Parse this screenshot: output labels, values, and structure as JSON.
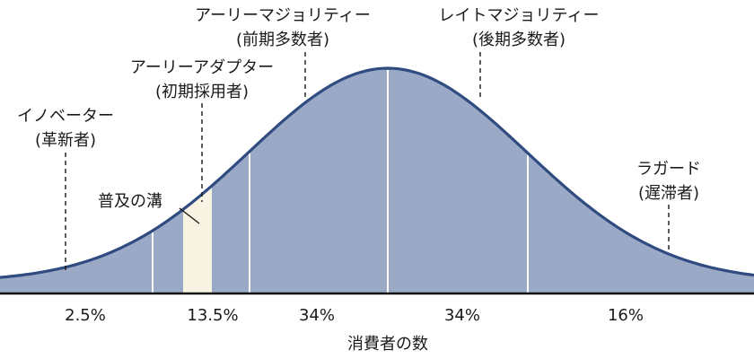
{
  "diagram": {
    "axis_label": "消費者の数",
    "segments": [
      {
        "label": "イノベーター",
        "sub": "(革新者)",
        "percent": "2.5%"
      },
      {
        "label": "アーリーアダプター",
        "sub": "(初期採用者)",
        "percent": "13.5%"
      },
      {
        "label": "アーリーマジョリティー",
        "sub": "(前期多数者)",
        "percent": "34%"
      },
      {
        "label": "レイトマジョリティー",
        "sub": "(後期多数者)",
        "percent": "34%"
      },
      {
        "label": "ラガード",
        "sub": "(遅滞者)",
        "percent": "16%"
      }
    ],
    "chasm_label": "普及の溝",
    "colors": {
      "curve_fill": "#9aa9c6",
      "curve_stroke": "#2f4b80",
      "chasm_fill": "#f8f3e2",
      "baseline": "#111111"
    }
  }
}
